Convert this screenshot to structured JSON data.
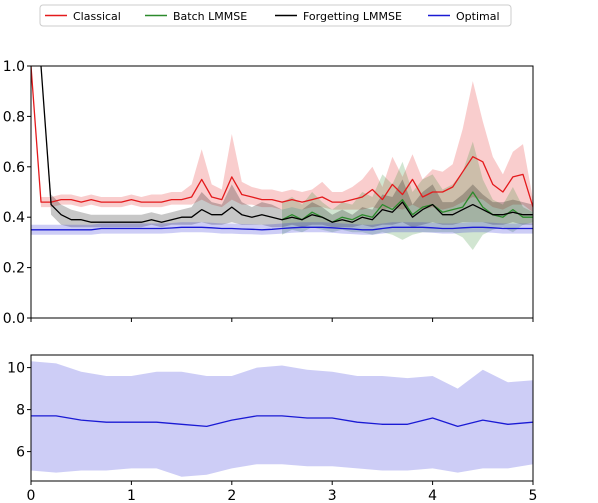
{
  "chart_data": [
    {
      "type": "line",
      "title": "",
      "xlabel": "",
      "ylabel": "",
      "xlim": [
        0,
        5
      ],
      "ylim": [
        0.0,
        1.0
      ],
      "y_ticks": [
        "0.0",
        "0.2",
        "0.4",
        "0.6",
        "0.8",
        "1.0"
      ],
      "grid": false,
      "legend_position": "top",
      "x": [
        0.0,
        0.1,
        0.2,
        0.3,
        0.4,
        0.5,
        0.6,
        0.7,
        0.8,
        0.9,
        1.0,
        1.1,
        1.2,
        1.3,
        1.4,
        1.5,
        1.6,
        1.7,
        1.8,
        1.9,
        2.0,
        2.1,
        2.2,
        2.3,
        2.4,
        2.5,
        2.6,
        2.7,
        2.8,
        2.9,
        3.0,
        3.1,
        3.2,
        3.3,
        3.4,
        3.5,
        3.6,
        3.7,
        3.8,
        3.9,
        4.0,
        4.1,
        4.2,
        4.3,
        4.4,
        4.5,
        4.6,
        4.7,
        4.8,
        4.9,
        5.0
      ],
      "series": [
        {
          "name": "Classical",
          "color": "#e41a1c",
          "values": [
            1.0,
            0.46,
            0.46,
            0.47,
            0.47,
            0.46,
            0.47,
            0.46,
            0.46,
            0.46,
            0.47,
            0.46,
            0.46,
            0.46,
            0.47,
            0.47,
            0.48,
            0.55,
            0.48,
            0.47,
            0.56,
            0.49,
            0.48,
            0.47,
            0.47,
            0.46,
            0.47,
            0.46,
            0.47,
            0.48,
            0.46,
            0.46,
            0.47,
            0.48,
            0.51,
            0.47,
            0.53,
            0.49,
            0.55,
            0.48,
            0.5,
            0.5,
            0.52,
            0.58,
            0.64,
            0.62,
            0.53,
            0.5,
            0.56,
            0.57,
            0.44
          ],
          "band_low": [
            1.0,
            0.44,
            0.44,
            0.45,
            0.45,
            0.44,
            0.45,
            0.44,
            0.44,
            0.44,
            0.45,
            0.44,
            0.44,
            0.44,
            0.45,
            0.45,
            0.45,
            0.47,
            0.45,
            0.44,
            0.47,
            0.45,
            0.45,
            0.44,
            0.44,
            0.43,
            0.44,
            0.43,
            0.44,
            0.44,
            0.43,
            0.43,
            0.43,
            0.43,
            0.44,
            0.43,
            0.44,
            0.43,
            0.45,
            0.43,
            0.44,
            0.43,
            0.44,
            0.46,
            0.48,
            0.47,
            0.44,
            0.43,
            0.45,
            0.45,
            0.42
          ],
          "band_high": [
            1.0,
            0.48,
            0.48,
            0.49,
            0.49,
            0.48,
            0.49,
            0.48,
            0.48,
            0.48,
            0.49,
            0.48,
            0.49,
            0.49,
            0.5,
            0.5,
            0.53,
            0.67,
            0.53,
            0.51,
            0.73,
            0.54,
            0.52,
            0.51,
            0.51,
            0.5,
            0.51,
            0.5,
            0.51,
            0.54,
            0.5,
            0.5,
            0.52,
            0.55,
            0.6,
            0.52,
            0.64,
            0.56,
            0.65,
            0.55,
            0.59,
            0.58,
            0.61,
            0.75,
            0.94,
            0.78,
            0.64,
            0.57,
            0.66,
            0.69,
            0.47
          ]
        },
        {
          "name": "Batch LMMSE",
          "color": "#2c8a2c",
          "x_start": 2.5,
          "values": [
            null,
            null,
            null,
            null,
            null,
            null,
            null,
            null,
            null,
            null,
            null,
            null,
            null,
            null,
            null,
            null,
            null,
            null,
            null,
            null,
            null,
            null,
            null,
            null,
            null,
            0.39,
            0.41,
            0.39,
            0.42,
            0.4,
            0.38,
            0.4,
            0.39,
            0.41,
            0.4,
            0.45,
            0.43,
            0.47,
            0.41,
            0.44,
            0.45,
            0.42,
            0.43,
            0.44,
            0.5,
            0.44,
            0.41,
            0.4,
            0.43,
            0.4,
            0.4
          ],
          "band_low": [
            null,
            null,
            null,
            null,
            null,
            null,
            null,
            null,
            null,
            null,
            null,
            null,
            null,
            null,
            null,
            null,
            null,
            null,
            null,
            null,
            null,
            null,
            null,
            null,
            null,
            0.33,
            0.35,
            0.34,
            0.36,
            0.35,
            0.34,
            0.35,
            0.34,
            0.34,
            0.33,
            0.34,
            0.33,
            0.31,
            0.33,
            0.34,
            0.34,
            0.34,
            0.34,
            0.32,
            0.27,
            0.33,
            0.35,
            0.36,
            0.34,
            0.37,
            0.38
          ],
          "band_high": [
            null,
            null,
            null,
            null,
            null,
            null,
            null,
            null,
            null,
            null,
            null,
            null,
            null,
            null,
            null,
            null,
            null,
            null,
            null,
            null,
            null,
            null,
            null,
            null,
            null,
            0.46,
            0.48,
            0.45,
            0.5,
            0.46,
            0.43,
            0.46,
            0.45,
            0.5,
            0.48,
            0.57,
            0.53,
            0.62,
            0.5,
            0.55,
            0.57,
            0.51,
            0.53,
            0.58,
            0.7,
            0.55,
            0.47,
            0.45,
            0.52,
            0.44,
            0.42
          ]
        },
        {
          "name": "Forgetting LMMSE",
          "color": "#000000",
          "values": [
            null,
            1.0,
            0.45,
            0.41,
            0.39,
            0.39,
            0.38,
            0.38,
            0.38,
            0.38,
            0.38,
            0.38,
            0.39,
            0.38,
            0.39,
            0.4,
            0.4,
            0.43,
            0.41,
            0.41,
            0.44,
            0.41,
            0.4,
            0.41,
            0.4,
            0.39,
            0.4,
            0.39,
            0.41,
            0.4,
            0.38,
            0.39,
            0.38,
            0.4,
            0.39,
            0.43,
            0.42,
            0.46,
            0.4,
            0.43,
            0.45,
            0.41,
            0.41,
            0.43,
            0.45,
            0.43,
            0.41,
            0.41,
            0.42,
            0.41,
            0.41
          ],
          "band_low": [
            null,
            1.0,
            0.41,
            0.37,
            0.36,
            0.36,
            0.36,
            0.36,
            0.36,
            0.36,
            0.36,
            0.36,
            0.37,
            0.36,
            0.37,
            0.37,
            0.37,
            0.38,
            0.37,
            0.37,
            0.38,
            0.37,
            0.37,
            0.37,
            0.36,
            0.36,
            0.37,
            0.36,
            0.37,
            0.37,
            0.36,
            0.36,
            0.36,
            0.37,
            0.36,
            0.37,
            0.37,
            0.38,
            0.36,
            0.37,
            0.38,
            0.37,
            0.37,
            0.38,
            0.38,
            0.38,
            0.37,
            0.37,
            0.38,
            0.37,
            0.37
          ],
          "band_high": [
            null,
            1.0,
            0.49,
            0.45,
            0.43,
            0.42,
            0.41,
            0.41,
            0.41,
            0.41,
            0.41,
            0.41,
            0.42,
            0.41,
            0.42,
            0.43,
            0.44,
            0.5,
            0.46,
            0.45,
            0.53,
            0.46,
            0.44,
            0.46,
            0.45,
            0.43,
            0.44,
            0.43,
            0.46,
            0.44,
            0.41,
            0.43,
            0.41,
            0.44,
            0.43,
            0.49,
            0.48,
            0.55,
            0.45,
            0.5,
            0.53,
            0.46,
            0.46,
            0.49,
            0.53,
            0.49,
            0.46,
            0.46,
            0.47,
            0.46,
            0.45
          ]
        },
        {
          "name": "Optimal",
          "color": "#1a1ad4",
          "values": [
            0.35,
            0.35,
            0.35,
            0.35,
            0.35,
            0.35,
            0.35,
            0.355,
            0.355,
            0.355,
            0.355,
            0.355,
            0.355,
            0.355,
            0.357,
            0.36,
            0.36,
            0.36,
            0.358,
            0.355,
            0.355,
            0.353,
            0.352,
            0.35,
            0.352,
            0.355,
            0.358,
            0.36,
            0.36,
            0.36,
            0.358,
            0.355,
            0.353,
            0.35,
            0.35,
            0.355,
            0.36,
            0.36,
            0.36,
            0.36,
            0.358,
            0.355,
            0.355,
            0.358,
            0.36,
            0.36,
            0.358,
            0.355,
            0.355,
            0.355,
            0.355
          ],
          "band_low": [
            0.33,
            0.33,
            0.33,
            0.33,
            0.33,
            0.33,
            0.33,
            0.335,
            0.335,
            0.335,
            0.335,
            0.335,
            0.335,
            0.335,
            0.337,
            0.34,
            0.34,
            0.34,
            0.338,
            0.335,
            0.335,
            0.333,
            0.332,
            0.33,
            0.332,
            0.335,
            0.338,
            0.34,
            0.34,
            0.34,
            0.338,
            0.335,
            0.333,
            0.33,
            0.33,
            0.335,
            0.34,
            0.34,
            0.34,
            0.34,
            0.338,
            0.335,
            0.335,
            0.338,
            0.34,
            0.34,
            0.338,
            0.335,
            0.335,
            0.335,
            0.335
          ],
          "band_high": [
            0.37,
            0.37,
            0.37,
            0.37,
            0.37,
            0.37,
            0.37,
            0.375,
            0.375,
            0.375,
            0.375,
            0.375,
            0.375,
            0.375,
            0.377,
            0.38,
            0.38,
            0.38,
            0.378,
            0.375,
            0.375,
            0.373,
            0.372,
            0.37,
            0.372,
            0.375,
            0.378,
            0.38,
            0.38,
            0.38,
            0.378,
            0.375,
            0.373,
            0.37,
            0.37,
            0.375,
            0.38,
            0.38,
            0.38,
            0.38,
            0.378,
            0.375,
            0.375,
            0.378,
            0.38,
            0.38,
            0.378,
            0.375,
            0.375,
            0.375,
            0.375
          ]
        }
      ]
    },
    {
      "type": "line",
      "title": "",
      "xlabel": "",
      "ylabel": "",
      "xlim": [
        0,
        5
      ],
      "ylim": [
        4.6,
        10.6
      ],
      "x_ticks": [
        "0",
        "1",
        "2",
        "3",
        "4",
        "5"
      ],
      "y_ticks": [
        "6",
        "8",
        "10"
      ],
      "grid": false,
      "x": [
        0.0,
        0.25,
        0.5,
        0.75,
        1.0,
        1.25,
        1.5,
        1.75,
        2.0,
        2.25,
        2.5,
        2.75,
        3.0,
        3.25,
        3.5,
        3.75,
        4.0,
        4.25,
        4.5,
        4.75,
        5.0
      ],
      "series": [
        {
          "name": "Optimal",
          "color": "#1a1ad4",
          "values": [
            7.7,
            7.7,
            7.5,
            7.4,
            7.4,
            7.4,
            7.3,
            7.2,
            7.5,
            7.7,
            7.7,
            7.6,
            7.6,
            7.4,
            7.3,
            7.3,
            7.6,
            7.2,
            7.5,
            7.3,
            7.4
          ],
          "band_low": [
            5.1,
            5.0,
            5.1,
            5.1,
            5.2,
            5.2,
            4.8,
            4.9,
            5.2,
            5.4,
            5.4,
            5.3,
            5.3,
            5.2,
            5.1,
            5.1,
            5.2,
            5.0,
            5.2,
            5.2,
            5.4
          ],
          "band_high": [
            10.3,
            10.2,
            9.8,
            9.6,
            9.6,
            9.8,
            9.8,
            9.6,
            9.6,
            10.0,
            10.1,
            9.9,
            9.8,
            9.6,
            9.6,
            9.5,
            9.6,
            9.0,
            9.9,
            9.3,
            9.4
          ]
        }
      ]
    }
  ]
}
